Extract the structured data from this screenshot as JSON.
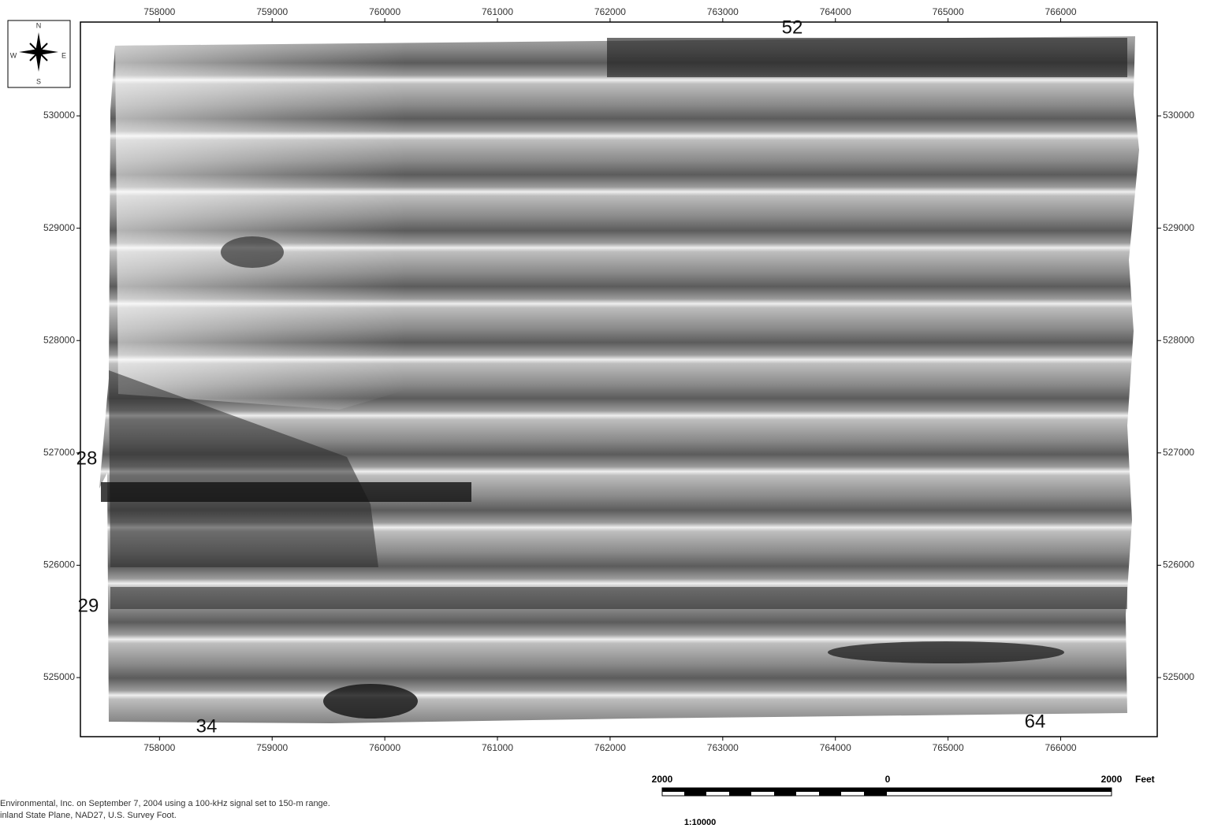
{
  "map": {
    "x_ticks": [
      758000,
      759000,
      760000,
      761000,
      762000,
      763000,
      764000,
      765000,
      766000
    ],
    "y_ticks": [
      530000,
      529000,
      528000,
      527000,
      526000,
      525000
    ],
    "xlim": [
      757298,
      766857
    ],
    "ylim": [
      524474,
      530835
    ]
  },
  "compass": {
    "north": "N",
    "south": "S",
    "east": "E",
    "west": "W"
  },
  "scale_bar": {
    "left": "2000",
    "center": "0",
    "right": "2000",
    "unit": "Feet",
    "ratio": "1:10000"
  },
  "caption": [
    "Environmental, Inc. on September 7, 2004 using a 100-kHz signal set to 150-m range.",
    "inland State Plane, NAD27, U.S. Survey Foot."
  ],
  "background_labels": [
    "52",
    "34",
    "28",
    "29",
    "64"
  ]
}
